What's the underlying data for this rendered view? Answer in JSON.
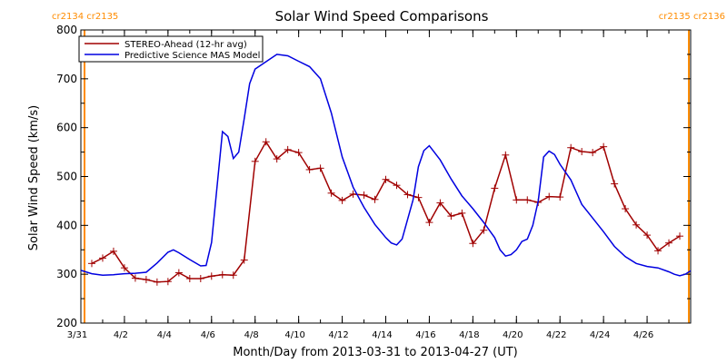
{
  "chart_data": {
    "type": "line",
    "title": "Solar Wind Speed Comparisons",
    "xlabel": "Month/Day from 2013-03-31 to 2013-04-27 (UT)",
    "ylabel": "Solar Wind Speed (km/s)",
    "xlim": [
      "2013-03-31",
      "2013-04-28"
    ],
    "ylim": [
      200,
      800
    ],
    "yticks": [
      200,
      300,
      400,
      500,
      600,
      700,
      800
    ],
    "xtick_dates": [
      "2013-03-31",
      "2013-04-02",
      "2013-04-04",
      "2013-04-06",
      "2013-04-08",
      "2013-04-10",
      "2013-04-12",
      "2013-04-14",
      "2013-04-16",
      "2013-04-18",
      "2013-04-20",
      "2013-04-22",
      "2013-04-24",
      "2013-04-26"
    ],
    "xtick_labels": [
      "3/31",
      "4/2",
      "4/4",
      "4/6",
      "4/8",
      "4/10",
      "4/12",
      "4/14",
      "4/16",
      "4/18",
      "4/20",
      "4/22",
      "4/24",
      "4/26"
    ],
    "grid": false,
    "legend_position": "top-left",
    "carrington_markers": [
      {
        "date": "2013-03-31T04:00",
        "labels": [
          "cr2134",
          "cr2135"
        ],
        "color": "#ff8c00",
        "side": "left"
      },
      {
        "date": "2013-04-27T22:00",
        "labels": [
          "cr2135",
          "cr2136"
        ],
        "color": "#ff8c00",
        "side": "right"
      }
    ],
    "series": [
      {
        "name": "STEREO-Ahead (12-hr avg)",
        "color": "#a00000",
        "marker": "plus",
        "points": [
          [
            "2013-03-31T12:00",
            322
          ],
          [
            "2013-04-01T00:00",
            333
          ],
          [
            "2013-04-01T12:00",
            347
          ],
          [
            "2013-04-02T00:00",
            313
          ],
          [
            "2013-04-02T12:00",
            292
          ],
          [
            "2013-04-03T00:00",
            289
          ],
          [
            "2013-04-03T12:00",
            284
          ],
          [
            "2013-04-04T00:00",
            285
          ],
          [
            "2013-04-04T12:00",
            303
          ],
          [
            "2013-04-05T00:00",
            291
          ],
          [
            "2013-04-05T12:00",
            291
          ],
          [
            "2013-04-06T00:00",
            296
          ],
          [
            "2013-04-06T12:00",
            299
          ],
          [
            "2013-04-07T00:00",
            298
          ],
          [
            "2013-04-07T12:00",
            329
          ],
          [
            "2013-04-08T00:00",
            531
          ],
          [
            "2013-04-08T12:00",
            571
          ],
          [
            "2013-04-09T00:00",
            536
          ],
          [
            "2013-04-09T12:00",
            555
          ],
          [
            "2013-04-10T00:00",
            549
          ],
          [
            "2013-04-10T12:00",
            514
          ],
          [
            "2013-04-11T00:00",
            517
          ],
          [
            "2013-04-11T12:00",
            466
          ],
          [
            "2013-04-12T00:00",
            451
          ],
          [
            "2013-04-12T12:00",
            464
          ],
          [
            "2013-04-13T00:00",
            462
          ],
          [
            "2013-04-13T12:00",
            453
          ],
          [
            "2013-04-14T00:00",
            494
          ],
          [
            "2013-04-14T12:00",
            482
          ],
          [
            "2013-04-15T00:00",
            463
          ],
          [
            "2013-04-15T12:00",
            457
          ],
          [
            "2013-04-16T00:00",
            406
          ],
          [
            "2013-04-16T12:00",
            446
          ],
          [
            "2013-04-17T00:00",
            419
          ],
          [
            "2013-04-17T12:00",
            425
          ],
          [
            "2013-04-18T00:00",
            363
          ],
          [
            "2013-04-18T12:00",
            390
          ],
          [
            "2013-04-19T00:00",
            476
          ],
          [
            "2013-04-19T12:00",
            544
          ],
          [
            "2013-04-20T00:00",
            452
          ],
          [
            "2013-04-20T12:00",
            452
          ],
          [
            "2013-04-21T00:00",
            447
          ],
          [
            "2013-04-21T12:00",
            459
          ],
          [
            "2013-04-22T00:00",
            458
          ],
          [
            "2013-04-22T12:00",
            559
          ],
          [
            "2013-04-23T00:00",
            551
          ],
          [
            "2013-04-23T12:00",
            549
          ],
          [
            "2013-04-24T00:00",
            561
          ],
          [
            "2013-04-24T12:00",
            485
          ],
          [
            "2013-04-25T00:00",
            434
          ],
          [
            "2013-04-25T12:00",
            401
          ],
          [
            "2013-04-26T00:00",
            380
          ],
          [
            "2013-04-26T12:00",
            348
          ],
          [
            "2013-04-27T00:00",
            364
          ],
          [
            "2013-04-27T12:00",
            378
          ]
        ]
      },
      {
        "name": "Predictive Science MAS Model",
        "color": "#0000e0",
        "marker": "none",
        "points": [
          [
            "2013-03-31T00:00",
            308
          ],
          [
            "2013-03-31T12:00",
            301
          ],
          [
            "2013-04-01T00:00",
            298
          ],
          [
            "2013-04-01T12:00",
            299
          ],
          [
            "2013-04-02T00:00",
            301
          ],
          [
            "2013-04-02T12:00",
            302
          ],
          [
            "2013-04-03T00:00",
            304
          ],
          [
            "2013-04-03T12:00",
            323
          ],
          [
            "2013-04-04T00:00",
            345
          ],
          [
            "2013-04-04T06:00",
            350
          ],
          [
            "2013-04-04T12:00",
            344
          ],
          [
            "2013-04-05T00:00",
            330
          ],
          [
            "2013-04-05T12:00",
            317
          ],
          [
            "2013-04-05T18:00",
            318
          ],
          [
            "2013-04-06T00:00",
            365
          ],
          [
            "2013-04-06T12:00",
            592
          ],
          [
            "2013-04-06T18:00",
            582
          ],
          [
            "2013-04-07T00:00",
            537
          ],
          [
            "2013-04-07T06:00",
            550
          ],
          [
            "2013-04-07T12:00",
            618
          ],
          [
            "2013-04-07T18:00",
            690
          ],
          [
            "2013-04-08T00:00",
            720
          ],
          [
            "2013-04-08T12:00",
            735
          ],
          [
            "2013-04-09T00:00",
            750
          ],
          [
            "2013-04-09T12:00",
            747
          ],
          [
            "2013-04-10T00:00",
            736
          ],
          [
            "2013-04-10T12:00",
            725
          ],
          [
            "2013-04-11T00:00",
            700
          ],
          [
            "2013-04-11T12:00",
            630
          ],
          [
            "2013-04-12T00:00",
            540
          ],
          [
            "2013-04-12T12:00",
            478
          ],
          [
            "2013-04-13T00:00",
            437
          ],
          [
            "2013-04-13T12:00",
            402
          ],
          [
            "2013-04-14T00:00",
            375
          ],
          [
            "2013-04-14T06:00",
            364
          ],
          [
            "2013-04-14T12:00",
            360
          ],
          [
            "2013-04-14T18:00",
            372
          ],
          [
            "2013-04-15T06:00",
            452
          ],
          [
            "2013-04-15T12:00",
            520
          ],
          [
            "2013-04-15T18:00",
            553
          ],
          [
            "2013-04-16T00:00",
            563
          ],
          [
            "2013-04-16T12:00",
            534
          ],
          [
            "2013-04-17T00:00",
            495
          ],
          [
            "2013-04-17T12:00",
            460
          ],
          [
            "2013-04-18T00:00",
            434
          ],
          [
            "2013-04-18T12:00",
            406
          ],
          [
            "2013-04-19T00:00",
            375
          ],
          [
            "2013-04-19T06:00",
            350
          ],
          [
            "2013-04-19T12:00",
            337
          ],
          [
            "2013-04-19T18:00",
            340
          ],
          [
            "2013-04-20T00:00",
            350
          ],
          [
            "2013-04-20T06:00",
            367
          ],
          [
            "2013-04-20T12:00",
            372
          ],
          [
            "2013-04-20T18:00",
            400
          ],
          [
            "2013-04-21T00:00",
            450
          ],
          [
            "2013-04-21T06:00",
            540
          ],
          [
            "2013-04-21T12:00",
            552
          ],
          [
            "2013-04-21T18:00",
            545
          ],
          [
            "2013-04-22T00:00",
            525
          ],
          [
            "2013-04-22T12:00",
            493
          ],
          [
            "2013-04-23T00:00",
            443
          ],
          [
            "2013-04-23T12:00",
            415
          ],
          [
            "2013-04-24T00:00",
            387
          ],
          [
            "2013-04-24T12:00",
            357
          ],
          [
            "2013-04-25T00:00",
            336
          ],
          [
            "2013-04-25T12:00",
            322
          ],
          [
            "2013-04-26T00:00",
            316
          ],
          [
            "2013-04-26T12:00",
            313
          ],
          [
            "2013-04-27T00:00",
            305
          ],
          [
            "2013-04-27T06:00",
            300
          ],
          [
            "2013-04-27T12:00",
            297
          ],
          [
            "2013-04-27T18:00",
            300
          ],
          [
            "2013-04-28T00:00",
            307
          ]
        ]
      }
    ]
  }
}
